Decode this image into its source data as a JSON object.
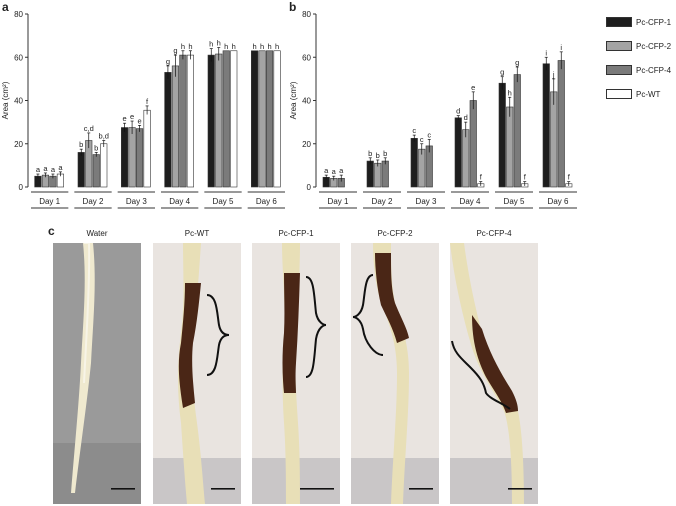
{
  "figure": {
    "panel_a_letter": "a",
    "panel_b_letter": "b",
    "panel_c_letter": "c",
    "colors": {
      "Pc-CFP-1": "#1e1e1e",
      "Pc-CFP-2": "#a4a4a4",
      "Pc-CFP-4": "#7b7b7b",
      "Pc-WT": "#ffffff"
    }
  },
  "chart_data": [
    {
      "type": "bar",
      "panel": "a",
      "ylabel": "Area (cm²)",
      "ylim": [
        0,
        80
      ],
      "yticks": [
        0,
        20,
        40,
        60,
        80
      ],
      "categories": [
        "Day 1",
        "Day 2",
        "Day 3",
        "Day 4",
        "Day 5",
        "Day 6"
      ],
      "series": [
        {
          "name": "Pc-CFP-1",
          "values": [
            5,
            16,
            27.5,
            53,
            61,
            63
          ],
          "errors": [
            1,
            1.5,
            2,
            3,
            3,
            0
          ],
          "letters": [
            "a",
            "b",
            "e",
            "g",
            "h",
            "h"
          ]
        },
        {
          "name": "Pc-CFP-2",
          "values": [
            5.5,
            21.5,
            27.5,
            56,
            61.5,
            63
          ],
          "errors": [
            1,
            3.5,
            3,
            5,
            3,
            0
          ],
          "letters": [
            "a",
            "c,d",
            "e",
            "g",
            "h",
            "h"
          ]
        },
        {
          "name": "Pc-CFP-4",
          "values": [
            5,
            15,
            27,
            61,
            63,
            63
          ],
          "errors": [
            1,
            1,
            1.5,
            2,
            0,
            0
          ],
          "letters": [
            "a",
            "b",
            "e",
            "h",
            "h",
            "h"
          ]
        },
        {
          "name": "Pc-WT",
          "values": [
            6,
            20,
            35.5,
            61,
            63,
            63
          ],
          "errors": [
            1,
            1.5,
            2,
            2,
            0,
            0
          ],
          "letters": [
            "a",
            "b,d",
            "f",
            "h",
            "h",
            "h"
          ]
        }
      ]
    },
    {
      "type": "bar",
      "panel": "b",
      "ylabel": "Area (cm²)",
      "ylim": [
        0,
        80
      ],
      "yticks": [
        0,
        20,
        40,
        60,
        80
      ],
      "categories": [
        "Day 1",
        "Day 2",
        "Day 3",
        "Day 4",
        "Day 5",
        "Day 6"
      ],
      "series": [
        {
          "name": "Pc-CFP-1",
          "values": [
            4.5,
            12,
            22.5,
            32,
            48,
            57
          ],
          "errors": [
            1,
            1.5,
            1.5,
            1,
            3,
            3
          ],
          "letters": [
            "a",
            "b",
            "c",
            "d",
            "g",
            "i"
          ]
        },
        {
          "name": "Pc-CFP-2",
          "values": [
            4,
            11,
            17.5,
            26.5,
            37,
            44
          ],
          "errors": [
            1,
            1.5,
            2.5,
            3.5,
            4.5,
            6
          ],
          "letters": [
            "a",
            "b",
            "c",
            "d",
            "h",
            "j"
          ]
        },
        {
          "name": "Pc-CFP-4",
          "values": [
            4,
            12,
            19,
            40,
            52,
            58.5
          ],
          "errors": [
            1.5,
            1.5,
            3,
            4,
            3.5,
            4
          ],
          "letters": [
            "a",
            "b",
            "c",
            "e",
            "g",
            "i"
          ]
        },
        {
          "name": "Pc-WT",
          "values": [
            0,
            0,
            0,
            1.5,
            1.5,
            1.5
          ],
          "errors": [
            0,
            0,
            0,
            1,
            1,
            1
          ],
          "letters": [
            "",
            "",
            "",
            "f",
            "f",
            "f"
          ]
        }
      ]
    }
  ],
  "legend": [
    {
      "name": "Pc-CFP-1",
      "color": "#1e1e1e"
    },
    {
      "name": "Pc-CFP-2",
      "color": "#a4a4a4"
    },
    {
      "name": "Pc-CFP-4",
      "color": "#7b7b7b"
    },
    {
      "name": "Pc-WT",
      "color": "#ffffff"
    }
  ],
  "photos": [
    {
      "label": "Water",
      "lesion": false,
      "background": "#9b9b9b"
    },
    {
      "label": "Pc-WT",
      "lesion": true,
      "background": "#e9e5e2"
    },
    {
      "label": "Pc-CFP-1",
      "lesion": true,
      "background": "#e9e5e2"
    },
    {
      "label": "Pc-CFP-2",
      "lesion": true,
      "background": "#e9e5e2"
    },
    {
      "label": "Pc-CFP-4",
      "lesion": true,
      "background": "#e9e5e2"
    }
  ]
}
